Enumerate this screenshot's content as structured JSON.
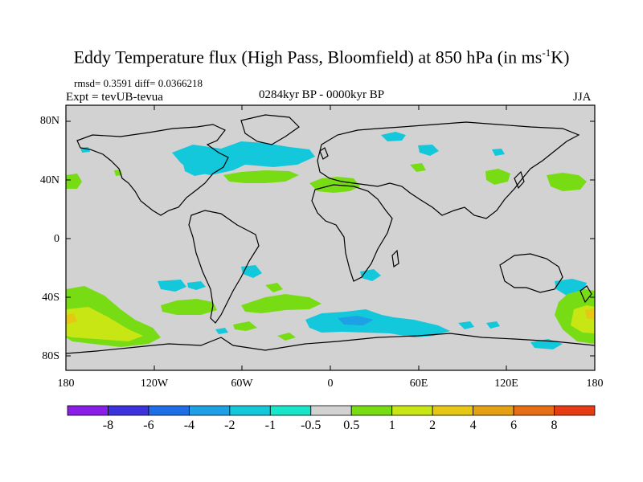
{
  "title": {
    "main": "Eddy Temperature flux (High Pass, Bloomfield) at 850 hPa (in ms",
    "sup": "-1",
    "unit_tail": "K)"
  },
  "stats": "rmsd= 0.3591 diff= 0.0366218",
  "experiment": "Expt = tevUB-tevua",
  "period": "0284kyr BP - 0000kyr BP",
  "season": "JJA",
  "lat_labels": [
    "80N",
    "40N",
    "0",
    "40S",
    "80S"
  ],
  "lon_labels": [
    "180",
    "120W",
    "60W",
    "0",
    "60E",
    "120E",
    "180"
  ],
  "colorbar": {
    "labels": [
      "-8",
      "-6",
      "-4",
      "-2",
      "-1",
      "-0.5",
      "0.5",
      "1",
      "2",
      "4",
      "6",
      "8"
    ],
    "colors": [
      "#8a1ee6",
      "#3c32dc",
      "#1e6ee6",
      "#1ea0e6",
      "#14c8dc",
      "#19e6c8",
      "#d2d2d2",
      "#78dc14",
      "#c8e614",
      "#e6c814",
      "#e6a014",
      "#e66e14",
      "#e63c14"
    ]
  },
  "map_colors": {
    "ocean_neutral": "#d2d2d2",
    "coast": "#000000"
  }
}
